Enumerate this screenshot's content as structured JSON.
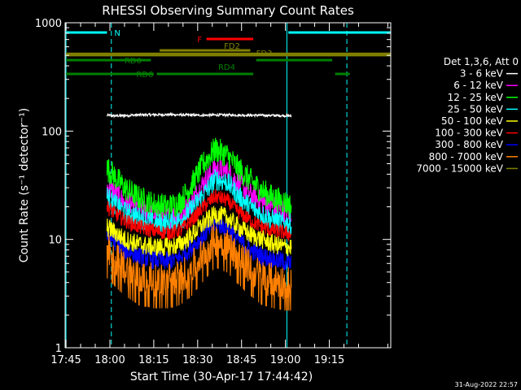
{
  "chart_data": {
    "type": "line",
    "title": "RHESSI Observing Summary Count Rates",
    "xlabel": "Start Time (30-Apr-17 17:44:42)",
    "ylabel": "Count Rate (s⁻¹ detector⁻¹)",
    "x_unit": "minutes of day",
    "xlim": [
      1064.7,
      1176
    ],
    "ylim": [
      1,
      1000
    ],
    "yscale": "log",
    "x_ticks": [
      {
        "label": "17:45",
        "x": 1065
      },
      {
        "label": "18:00",
        "x": 1080
      },
      {
        "label": "18:15",
        "x": 1095
      },
      {
        "label": "18:30",
        "x": 1110
      },
      {
        "label": "18:45",
        "x": 1125
      },
      {
        "label": "19:00",
        "x": 1140
      },
      {
        "label": "19:15",
        "x": 1155
      }
    ],
    "y_ticks": [
      {
        "label": "1",
        "y": 1
      },
      {
        "label": "10",
        "y": 10
      },
      {
        "label": "100",
        "y": 100
      },
      {
        "label": "1000",
        "y": 1000
      }
    ],
    "legend_position": "right",
    "legend_header": "Det 1,3,6, Att 0",
    "series": [
      {
        "name": "3 - 6 keV",
        "color": "#ffffff",
        "x": [
          1079,
          1082,
          1090,
          1100,
          1110,
          1120,
          1130,
          1140,
          1142
        ],
        "y": [
          140,
          138,
          141,
          142,
          140,
          141,
          140,
          139,
          138
        ]
      },
      {
        "name": "6 - 12 keV",
        "color": "#ff00ff",
        "x": [
          1079,
          1081,
          1085,
          1090,
          1095,
          1100,
          1104,
          1108,
          1112,
          1116,
          1120,
          1124,
          1128,
          1132,
          1136,
          1140,
          1142
        ],
        "y": [
          30,
          28,
          22,
          19,
          17,
          16,
          17,
          22,
          33,
          45,
          42,
          33,
          26,
          22,
          20,
          18,
          18
        ]
      },
      {
        "name": "12 - 25 keV",
        "color": "#00ff00",
        "x": [
          1079,
          1081,
          1085,
          1090,
          1095,
          1100,
          1104,
          1108,
          1112,
          1116,
          1120,
          1124,
          1128,
          1132,
          1136,
          1140,
          1142
        ],
        "y": [
          45,
          40,
          30,
          24,
          21,
          20,
          22,
          32,
          50,
          68,
          60,
          45,
          35,
          28,
          24,
          22,
          20
        ]
      },
      {
        "name": "25 - 50 keV",
        "color": "#00ffff",
        "x": [
          1079,
          1081,
          1085,
          1090,
          1095,
          1100,
          1104,
          1108,
          1112,
          1116,
          1120,
          1124,
          1128,
          1132,
          1136,
          1140,
          1142
        ],
        "y": [
          25,
          22,
          18,
          16,
          14,
          14,
          15,
          19,
          26,
          36,
          34,
          25,
          20,
          17,
          15,
          14,
          14
        ]
      },
      {
        "name": "50 - 100 keV",
        "color": "#ffff00",
        "x": [
          1079,
          1081,
          1085,
          1090,
          1095,
          1100,
          1104,
          1108,
          1112,
          1116,
          1120,
          1124,
          1128,
          1132,
          1136,
          1140,
          1142
        ],
        "y": [
          13,
          12,
          10,
          9,
          8.5,
          8.5,
          9,
          11,
          14,
          17,
          16,
          13,
          11,
          10,
          9,
          8.5,
          8.5
        ]
      },
      {
        "name": "100 - 300 keV",
        "color": "#ff0000",
        "x": [
          1079,
          1081,
          1085,
          1090,
          1095,
          1100,
          1104,
          1108,
          1112,
          1116,
          1120,
          1124,
          1128,
          1132,
          1136,
          1140,
          1142
        ],
        "y": [
          20,
          18,
          15,
          13,
          12,
          11.5,
          12,
          15,
          20,
          25,
          23,
          18,
          15,
          13,
          12,
          11.5,
          11
        ]
      },
      {
        "name": "300 - 800 keV",
        "color": "#0000ff",
        "x": [
          1079,
          1081,
          1085,
          1090,
          1095,
          1100,
          1104,
          1108,
          1112,
          1116,
          1120,
          1124,
          1128,
          1132,
          1136,
          1140,
          1142
        ],
        "y": [
          11,
          10,
          8,
          7,
          6.5,
          6.3,
          6.8,
          8.5,
          11,
          14,
          13,
          10,
          8,
          7,
          6.5,
          6.2,
          6
        ]
      },
      {
        "name": "800 - 7000 keV",
        "color": "#ff8000",
        "x": [
          1079,
          1081,
          1085,
          1090,
          1095,
          1100,
          1104,
          1108,
          1112,
          1116,
          1120,
          1124,
          1128,
          1132,
          1136,
          1140,
          1142
        ],
        "y": [
          8,
          7,
          5.5,
          4.5,
          4.2,
          4.2,
          4.5,
          5.5,
          7.5,
          10,
          9,
          7,
          5.5,
          4.5,
          4.2,
          4,
          4
        ]
      },
      {
        "name": "7000 - 15000 keV",
        "color": "#808000",
        "x": [
          1065,
          1176
        ],
        "y": [
          500,
          500
        ]
      }
    ],
    "annotations": [
      {
        "label": "N",
        "color": "#00ffff",
        "segments": [
          [
            1065,
            1079
          ],
          [
            1141,
            1176
          ]
        ]
      },
      {
        "label": "F",
        "color": "#ff0000",
        "segments": [
          [
            1113,
            1129
          ]
        ]
      },
      {
        "label": "FD2",
        "color": "#808000",
        "segments": [
          [
            1097,
            1128
          ]
        ]
      },
      {
        "label": "FD3",
        "color": "#808000",
        "segments": [
          [
            1065,
            1176
          ]
        ]
      },
      {
        "label": "RD0",
        "color": "#008000",
        "segments": [
          [
            1065,
            1094
          ],
          [
            1130,
            1156
          ]
        ]
      },
      {
        "label": "RD4",
        "color": "#008000",
        "segments": [
          [
            1096,
            1129
          ]
        ]
      },
      {
        "label": "RD6",
        "color": "#008000",
        "segments": [
          [
            1065,
            1095
          ],
          [
            1157,
            1162
          ]
        ]
      }
    ],
    "vertical_markers": [
      {
        "x": 1065,
        "color": "#00ffff",
        "style": "solid"
      },
      {
        "x": 1080.5,
        "color": "#00ffff",
        "style": "dashed"
      },
      {
        "x": 1140.5,
        "color": "#00ffff",
        "style": "solid"
      },
      {
        "x": 1161,
        "color": "#00ffff",
        "style": "dashed"
      }
    ]
  },
  "footer": {
    "date_stamp": "31-Aug-2022 22:57"
  }
}
